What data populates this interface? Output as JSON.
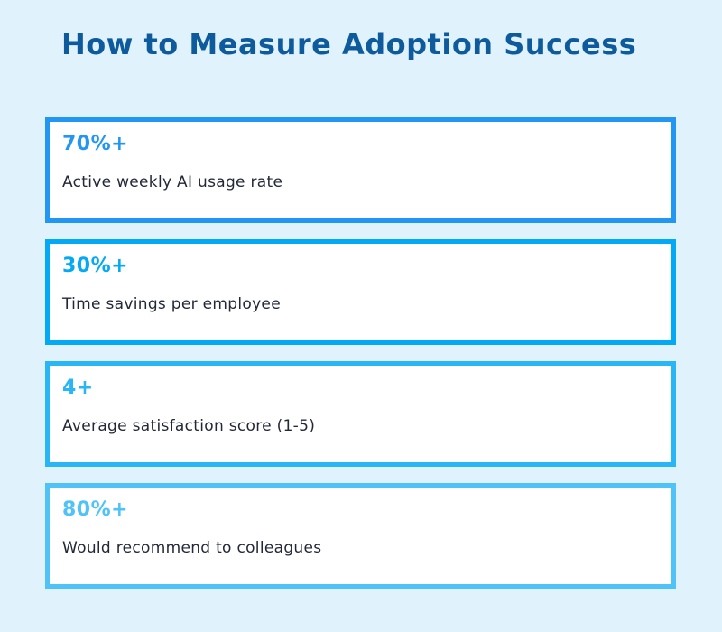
{
  "title": "How to Measure Adoption Success",
  "colors": {
    "background": "#e0f2fc",
    "title_text": "#0d5a9c",
    "card_background": "#ffffff",
    "body_text": "#232838"
  },
  "cards": [
    {
      "stat": "70%+",
      "label": "Active weekly AI usage rate",
      "accent": "#2196f3"
    },
    {
      "stat": "30%+",
      "label": "Time savings per employee",
      "accent": "#03a9f4"
    },
    {
      "stat": "4+",
      "label": "Average satisfaction score (1-5)",
      "accent": "#29b6f6"
    },
    {
      "stat": "80%+",
      "label": "Would recommend to colleagues",
      "accent": "#4fc3f7"
    }
  ]
}
